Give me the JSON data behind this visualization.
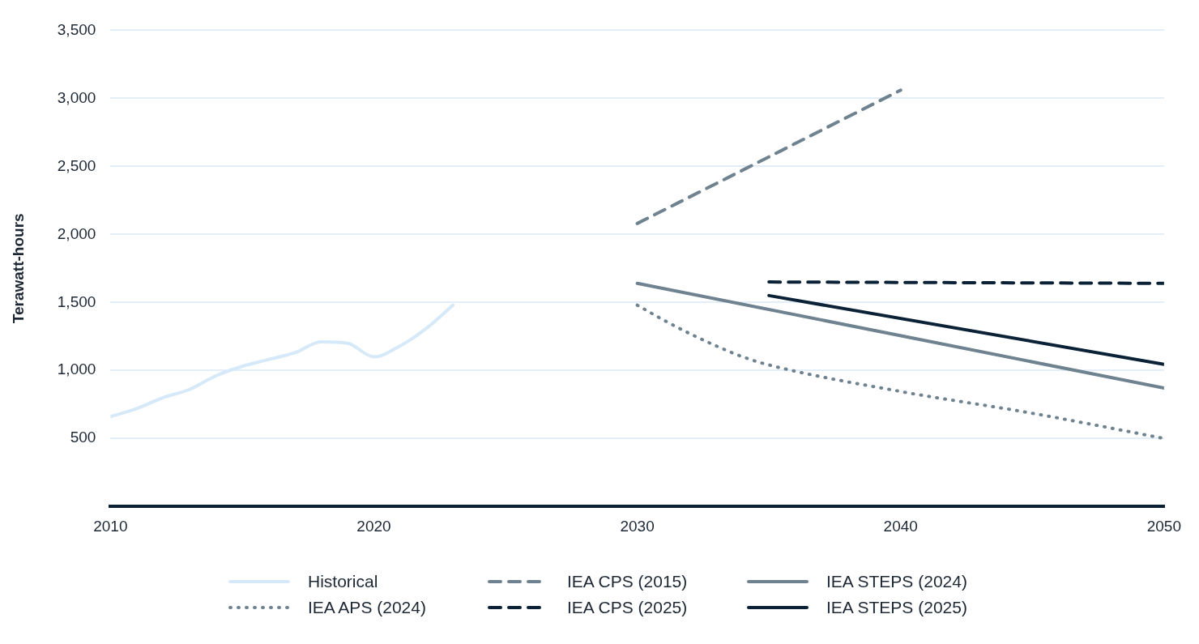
{
  "chart_data": {
    "type": "line",
    "ylabel": "Terawatt-hours",
    "xlim": [
      2010,
      2050
    ],
    "xticks": [
      2010,
      2020,
      2030,
      2040,
      2050
    ],
    "ylim": [
      0,
      3500
    ],
    "yticks": [
      {
        "value": 0,
        "label": null
      },
      500,
      {
        "value": 1000,
        "label": "1,000"
      },
      {
        "value": 1500,
        "label": "1,500"
      },
      {
        "value": 2000,
        "label": "2,000"
      },
      {
        "value": 2500,
        "label": "2,500"
      },
      {
        "value": 3000,
        "label": "3,000"
      },
      {
        "value": 3500,
        "label": "3,500"
      }
    ],
    "grid": "y",
    "legend": "bottom",
    "marker": "none",
    "series": [
      {
        "name": "Historical",
        "color": "#d6e9f8",
        "line_style": "solid",
        "x": [
          2010,
          2011,
          2012,
          2013,
          2014,
          2015,
          2016,
          2017,
          2018,
          2019,
          2020,
          2021,
          2022,
          2023
        ],
        "values": [
          660,
          720,
          800,
          860,
          960,
          1030,
          1080,
          1130,
          1210,
          1200,
          1100,
          1180,
          1310,
          1480
        ]
      },
      {
        "name": "IEA CPS (2015)",
        "color": "#6f8290",
        "line_style": "dashed",
        "x": [
          2030,
          2040
        ],
        "values": [
          2080,
          3060
        ]
      },
      {
        "name": "IEA STEPS (2024)",
        "color": "#6f8290",
        "line_style": "solid",
        "x": [
          2030,
          2050
        ],
        "values": [
          1640,
          870
        ]
      },
      {
        "name": "IEA APS (2024)",
        "color": "#6f8290",
        "line_style": "dotted",
        "x": [
          2030,
          2031,
          2032,
          2033,
          2034,
          2035,
          2040,
          2045,
          2050
        ],
        "values": [
          1480,
          1370,
          1270,
          1180,
          1100,
          1040,
          845,
          685,
          500
        ]
      },
      {
        "name": "IEA CPS (2025)",
        "color": "#0b2236",
        "line_style": "dashed",
        "x": [
          2035,
          2050
        ],
        "values": [
          1650,
          1640
        ]
      },
      {
        "name": "IEA STEPS (2025)",
        "color": "#0b2236",
        "line_style": "solid",
        "x": [
          2035,
          2050
        ],
        "values": [
          1550,
          1045
        ]
      }
    ]
  }
}
